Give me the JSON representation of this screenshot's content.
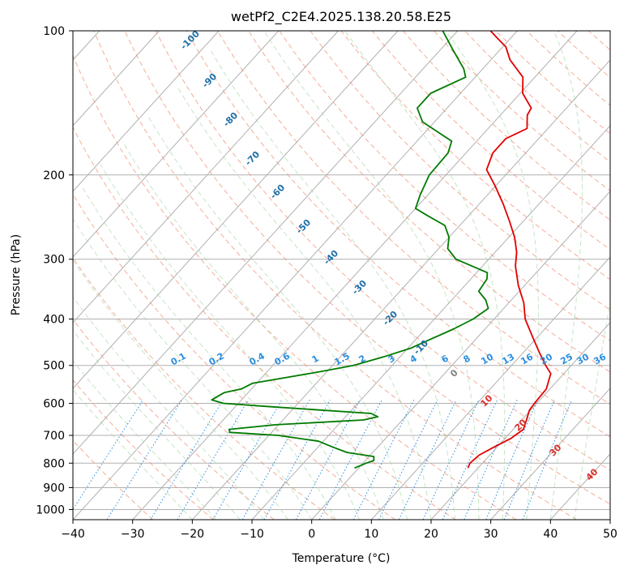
{
  "chart_data": {
    "type": "line",
    "title": "wetPf2_C2E4.2025.138.20.58.E25",
    "xlabel": "Temperature (°C)",
    "ylabel": "Pressure (hPa)",
    "xlim": [
      -40,
      50
    ],
    "ylim": [
      1050,
      100
    ],
    "y_scale": "log",
    "skew": "skew-T log-P",
    "grid": true,
    "x_ticks": [
      "−40",
      "−30",
      "−20",
      "−10",
      "0",
      "10",
      "20",
      "30",
      "40",
      "50"
    ],
    "y_ticks": [
      "100",
      "200",
      "300",
      "400",
      "500",
      "600",
      "700",
      "800",
      "900",
      "1000"
    ],
    "series": [
      {
        "color": "#e00000",
        "points": [
          [
            819,
            18.3
          ],
          [
            800,
            17.9
          ],
          [
            770,
            18.2
          ],
          [
            740,
            19.5
          ],
          [
            710,
            21.0
          ],
          [
            680,
            21.7
          ],
          [
            650,
            20.8
          ],
          [
            620,
            19.8
          ],
          [
            600,
            19.6
          ],
          [
            560,
            19.4
          ],
          [
            520,
            17.8
          ],
          [
            500,
            15.7
          ],
          [
            470,
            12.7
          ],
          [
            440,
            9.6
          ],
          [
            400,
            5.2
          ],
          [
            370,
            2.5
          ],
          [
            340,
            -1.1
          ],
          [
            310,
            -4.5
          ],
          [
            290,
            -6.4
          ],
          [
            270,
            -9.0
          ],
          [
            250,
            -12.3
          ],
          [
            230,
            -16.0
          ],
          [
            210,
            -20.3
          ],
          [
            195,
            -24.0
          ],
          [
            180,
            -25.5
          ],
          [
            168,
            -25.5
          ],
          [
            160,
            -23.5
          ],
          [
            150,
            -25.5
          ],
          [
            145,
            -25.9
          ],
          [
            135,
            -29.6
          ],
          [
            125,
            -32.0
          ],
          [
            115,
            -36.8
          ],
          [
            108,
            -39.5
          ],
          [
            103,
            -42.6
          ],
          [
            100,
            -44.5
          ]
        ]
      },
      {
        "color": "#007a00",
        "points": [
          [
            819,
            -0.7
          ],
          [
            800,
            0.5
          ],
          [
            790,
            1.4
          ],
          [
            775,
            0.8
          ],
          [
            760,
            -4.3
          ],
          [
            740,
            -7.6
          ],
          [
            720,
            -10.8
          ],
          [
            700,
            -18.5
          ],
          [
            690,
            -27.0
          ],
          [
            680,
            -27.6
          ],
          [
            665,
            -20.5
          ],
          [
            650,
            -6.5
          ],
          [
            640,
            -4.6
          ],
          [
            630,
            -6.2
          ],
          [
            610,
            -24.0
          ],
          [
            600,
            -32.5
          ],
          [
            590,
            -35.0
          ],
          [
            570,
            -34.0
          ],
          [
            560,
            -31.7
          ],
          [
            545,
            -30.7
          ],
          [
            530,
            -26.0
          ],
          [
            515,
            -21.0
          ],
          [
            500,
            -16.5
          ],
          [
            480,
            -12.8
          ],
          [
            460,
            -9.5
          ],
          [
            445,
            -8.0
          ],
          [
            420,
            -5.3
          ],
          [
            400,
            -3.5
          ],
          [
            380,
            -2.6
          ],
          [
            365,
            -4.3
          ],
          [
            350,
            -6.8
          ],
          [
            330,
            -7.3
          ],
          [
            320,
            -8.2
          ],
          [
            300,
            -15.5
          ],
          [
            285,
            -18.5
          ],
          [
            270,
            -20.0
          ],
          [
            255,
            -22.5
          ],
          [
            243,
            -27.0
          ],
          [
            235,
            -30.0
          ],
          [
            220,
            -31.3
          ],
          [
            200,
            -32.8
          ],
          [
            180,
            -33.0
          ],
          [
            170,
            -34.2
          ],
          [
            155,
            -42.0
          ],
          [
            145,
            -45.0
          ],
          [
            135,
            -45.0
          ],
          [
            125,
            -41.6
          ],
          [
            120,
            -43.2
          ],
          [
            110,
            -47.7
          ],
          [
            100,
            -52.5
          ]
        ]
      }
    ],
    "dry_adiabat_labels": [
      "-100",
      "-90",
      "-80",
      "-70",
      "-60",
      "-50",
      "-40",
      "-30",
      "-20",
      "-10",
      "0",
      "10",
      "20",
      "30",
      "40"
    ],
    "mixing_ratio_labels": [
      "0.1",
      "0.2",
      "0.4",
      "0.6",
      "1",
      "1.5",
      "2",
      "3",
      "4",
      "6",
      "8",
      "10",
      "13",
      "16",
      "20",
      "25",
      "30",
      "36"
    ],
    "colors": {
      "temperature": "#e00000",
      "dewpoint": "#007a00",
      "dry_adiabat": "#f08a6c",
      "moist_adiabat": "#9fd49f",
      "mixing_ratio": "#2a8ee0",
      "isotherm": "#999999"
    }
  }
}
